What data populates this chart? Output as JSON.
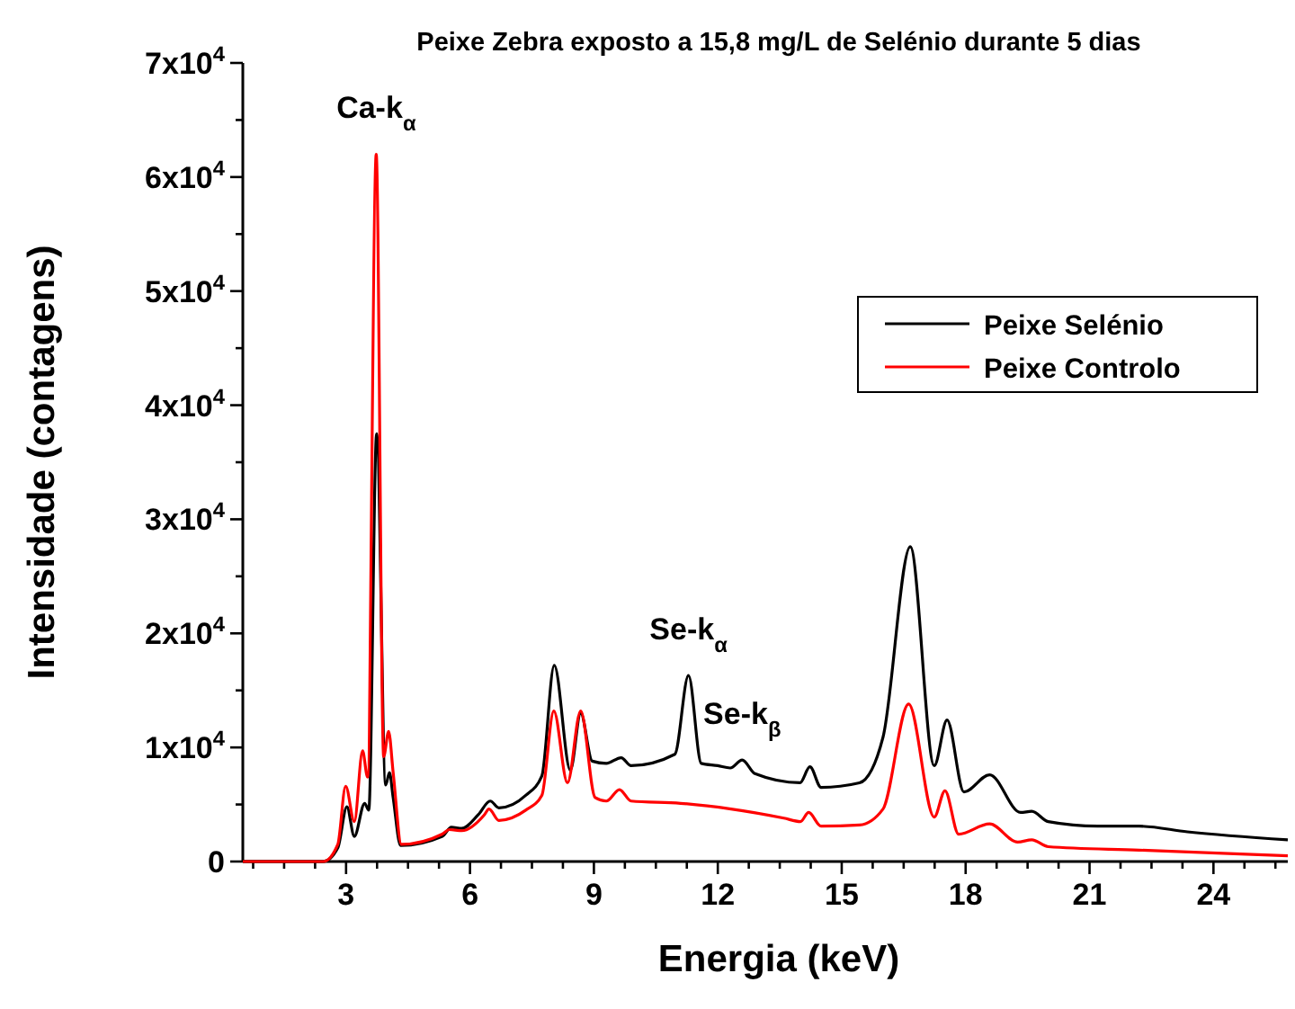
{
  "chart_data": {
    "type": "line",
    "title": "Peixe Zebra exposto a 15,8 mg/L de Selénio durante 5 dias",
    "xlabel": "Energia (keV)",
    "ylabel": "Intensidade (contagens)",
    "xlim": [
      0.5,
      25.8
    ],
    "ylim": [
      0,
      70000
    ],
    "xticks": [
      {
        "value": 0.75,
        "label": null
      },
      {
        "value": 1.5,
        "label": null
      },
      {
        "value": 2.25,
        "label": null
      },
      3,
      {
        "value": 3.75,
        "label": null
      },
      {
        "value": 4.5,
        "label": null
      },
      {
        "value": 5.25,
        "label": null
      },
      6,
      {
        "value": 6.75,
        "label": null
      },
      {
        "value": 7.5,
        "label": null
      },
      {
        "value": 8.25,
        "label": null
      },
      9,
      {
        "value": 9.75,
        "label": null
      },
      {
        "value": 10.5,
        "label": null
      },
      {
        "value": 11.25,
        "label": null
      },
      12,
      {
        "value": 12.75,
        "label": null
      },
      {
        "value": 13.5,
        "label": null
      },
      {
        "value": 14.25,
        "label": null
      },
      15,
      {
        "value": 15.75,
        "label": null
      },
      {
        "value": 16.5,
        "label": null
      },
      {
        "value": 17.25,
        "label": null
      },
      18,
      {
        "value": 18.75,
        "label": null
      },
      {
        "value": 19.5,
        "label": null
      },
      {
        "value": 20.25,
        "label": null
      },
      21,
      {
        "value": 21.75,
        "label": null
      },
      {
        "value": 22.5,
        "label": null
      },
      {
        "value": 23.25,
        "label": null
      },
      24,
      {
        "value": 24.75,
        "label": null
      },
      {
        "value": 25.5,
        "label": null
      }
    ],
    "yticks": [
      {
        "value": 0,
        "label": "0"
      },
      {
        "value": 5000,
        "label": null
      },
      {
        "value": 10000,
        "label": "1x10$^{4}$"
      },
      {
        "value": 15000,
        "label": null
      },
      {
        "value": 20000,
        "label": "2x10$^{4}$"
      },
      {
        "value": 25000,
        "label": null
      },
      {
        "value": 30000,
        "label": "3x10$^{4}$"
      },
      {
        "value": 35000,
        "label": null
      },
      {
        "value": 40000,
        "label": "4x10$^{4}$"
      },
      {
        "value": 45000,
        "label": null
      },
      {
        "value": 50000,
        "label": "5x10$^{4}$"
      },
      {
        "value": 55000,
        "label": null
      },
      {
        "value": 60000,
        "label": "6x10$^{4}$"
      },
      {
        "value": 65000,
        "label": null
      },
      {
        "value": 70000,
        "label": "7x10$^{4}$"
      }
    ],
    "grid": false,
    "legend": "top right",
    "marker": "none",
    "line_style": "solid",
    "series": [
      {
        "name": "Peixe Selénio",
        "color": "#000000",
        "x": [
          0.5,
          2.45,
          2.8,
          3.02,
          3.2,
          3.45,
          3.55,
          3.74,
          3.96,
          4.05,
          4.14,
          4.32,
          5.33,
          5.55,
          5.8,
          6.2,
          6.49,
          6.7,
          7.35,
          7.74,
          8.04,
          8.43,
          8.68,
          8.96,
          9.3,
          9.66,
          9.9,
          10.96,
          11.29,
          11.6,
          12.0,
          12.3,
          12.59,
          12.9,
          13.99,
          14.23,
          14.5,
          15.43,
          16.0,
          16.66,
          17.24,
          17.55,
          17.96,
          18.58,
          19.33,
          19.6,
          20.0,
          21.2,
          22.2,
          23.37,
          25.8
        ],
        "values": [
          0,
          0,
          1200,
          4800,
          2200,
          5100,
          4500,
          37500,
          6700,
          7800,
          5600,
          1400,
          2200,
          3000,
          2900,
          4100,
          5300,
          4700,
          5800,
          7500,
          17200,
          8000,
          13000,
          8800,
          8600,
          9100,
          8400,
          9400,
          16300,
          8600,
          8400,
          8200,
          8900,
          7700,
          6900,
          8300,
          6500,
          6900,
          10900,
          27600,
          8400,
          12400,
          6100,
          7600,
          4300,
          4400,
          3500,
          3100,
          3100,
          2600,
          1900
        ]
      },
      {
        "name": "Peixe Controlo",
        "color": "#ff0000",
        "x": [
          0.5,
          2.45,
          2.8,
          2.99,
          3.2,
          3.4,
          3.52,
          3.73,
          3.91,
          4.03,
          4.14,
          4.34,
          5.33,
          5.5,
          5.8,
          6.35,
          6.46,
          6.7,
          7.35,
          7.74,
          8.03,
          8.36,
          8.68,
          9.03,
          9.3,
          9.62,
          9.9,
          11.1,
          12.32,
          13.6,
          14.0,
          14.2,
          14.5,
          15.43,
          16.0,
          16.62,
          17.24,
          17.5,
          17.83,
          18.58,
          19.26,
          19.6,
          20.0,
          22.2,
          25.8
        ],
        "values": [
          0,
          0,
          1500,
          6600,
          3500,
          9700,
          7400,
          62000,
          9200,
          11400,
          7800,
          1500,
          2400,
          2800,
          2700,
          4100,
          4600,
          3600,
          4500,
          5800,
          13200,
          6900,
          13200,
          5600,
          5300,
          6300,
          5300,
          5100,
          4600,
          3800,
          3500,
          4300,
          3100,
          3200,
          4600,
          13800,
          3900,
          6200,
          2400,
          3300,
          1700,
          1900,
          1300,
          1000,
          500
        ]
      }
    ],
    "annotations": [
      {
        "text": "Ca-k$_{α}$",
        "x": 3.73,
        "y": 62000
      },
      {
        "text": "Se-k$_{α}$",
        "x": 11.29,
        "y": 16300
      },
      {
        "text": "Se-k$_{β}$",
        "x": 12.59,
        "y": 8900
      }
    ]
  }
}
